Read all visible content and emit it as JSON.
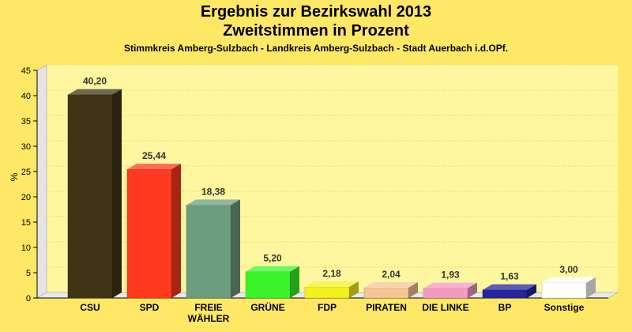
{
  "chart_data": {
    "type": "bar",
    "title": "Ergebnis zur Bezirkswahl 2013",
    "subtitle": "Zweitstimmen in Prozent",
    "subsubtitle": "Stimmkreis Amberg-Sulzbach - Landkreis Amberg-Sulzbach - Stadt Auerbach i.d.OPf.",
    "ylabel": "%",
    "ylim": [
      0,
      45
    ],
    "yticks": [
      "0",
      "5",
      "10",
      "15",
      "20",
      "25",
      "30",
      "35",
      "40",
      "45"
    ],
    "grid": true,
    "categories": [
      "CSU",
      "SPD",
      "FREIE WÄHLER",
      "GRÜNE",
      "FDP",
      "PIRATEN",
      "DIE LINKE",
      "BP",
      "Sonstige"
    ],
    "category_lines": [
      [
        "CSU"
      ],
      [
        "SPD"
      ],
      [
        "FREIE",
        "WÄHLER"
      ],
      [
        "GRÜNE"
      ],
      [
        "FDP"
      ],
      [
        "PIRATEN"
      ],
      [
        "DIE LINKE"
      ],
      [
        "BP"
      ],
      [
        "Sonstige"
      ]
    ],
    "values": [
      40.2,
      25.44,
      18.38,
      5.2,
      2.18,
      2.04,
      1.93,
      1.63,
      3.0
    ],
    "value_labels": [
      "40,20",
      "25,44",
      "18,38",
      "5,20",
      "2,18",
      "2,04",
      "1,93",
      "1,63",
      "3,00"
    ],
    "colors": [
      "#3F3515",
      "#FF3A1E",
      "#6E9E80",
      "#3BF52A",
      "#F4F21E",
      "#F5C594",
      "#F59AC2",
      "#25259E",
      "#FFFFFF"
    ]
  }
}
